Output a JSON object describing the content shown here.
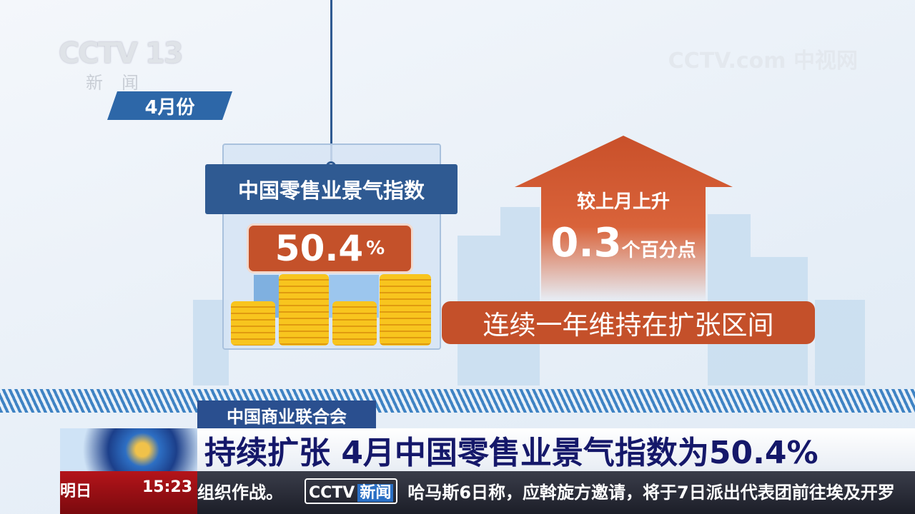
{
  "channel": {
    "logo": "CCTV 13",
    "logo_sub": "新闻",
    "watermark": "CCTV.com 中视网"
  },
  "graphic": {
    "month_tag": "4月份",
    "index_title": "中国零售业景气指数",
    "index_value": "50.4",
    "index_unit": "%",
    "change_label": "较上月上升",
    "change_value": "0.3",
    "change_unit": "个百分点",
    "trend_note": "连续一年维持在扩张区间",
    "colors": {
      "navy": "#2f5a92",
      "orange": "#c4512a",
      "gold": "#f8c51e"
    }
  },
  "lower_third": {
    "source": "中国商业联合会",
    "headline": "持续扩张 4月中国零售业景气指数为50.4%"
  },
  "ticker": {
    "left_label": "明日",
    "time": "15:23",
    "prev_text": "组织作战。",
    "logo": "CCTV",
    "logo_tag": "新闻",
    "text": "哈马斯6日称，应斡旋方邀请，将于7日派出代表团前往埃及开罗"
  }
}
